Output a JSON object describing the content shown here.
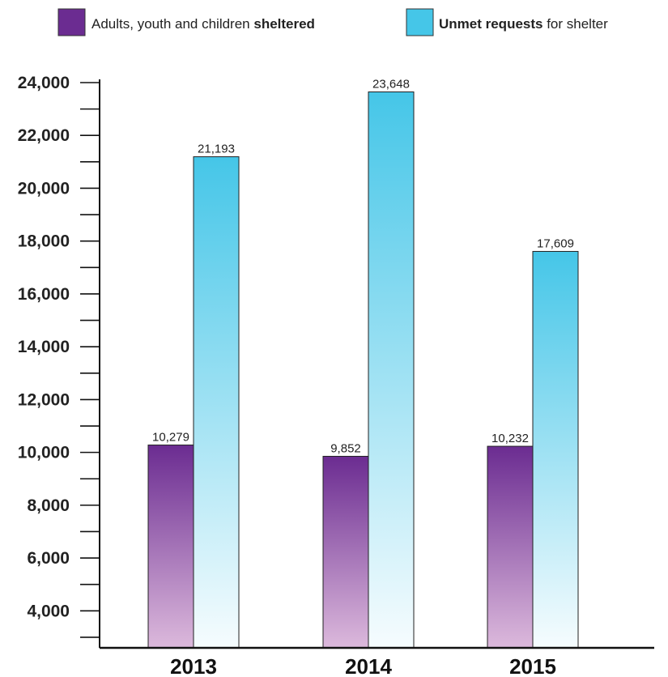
{
  "chart_data": {
    "type": "bar",
    "categories": [
      "2013",
      "2014",
      "2015"
    ],
    "series": [
      {
        "name": "Adults, youth and children sheltered",
        "legend_parts": [
          {
            "text": "Adults, youth and children ",
            "bold": false
          },
          {
            "text": "sheltered",
            "bold": true
          }
        ],
        "values": [
          10279,
          9852,
          10232
        ],
        "labels": [
          "10,279",
          "9,852",
          "10,232"
        ],
        "color_top": "#6b2c91",
        "color_bottom": "#dcb9dc",
        "legend_color": "#6b2c91"
      },
      {
        "name": "Unmet requests for shelter",
        "legend_parts": [
          {
            "text": "Unmet requests",
            "bold": true
          },
          {
            "text": " for shelter",
            "bold": false
          }
        ],
        "values": [
          21193,
          23648,
          17609
        ],
        "labels": [
          "21,193",
          "23,648",
          "17,609"
        ],
        "color_top": "#45c6e8",
        "color_bottom": "#f6fcfe",
        "legend_color": "#45c6e8"
      }
    ],
    "yticks": [
      {
        "value": 4000,
        "label": "4,000"
      },
      {
        "value": 6000,
        "label": "6,000"
      },
      {
        "value": 8000,
        "label": "8,000"
      },
      {
        "value": 10000,
        "label": "10,000"
      },
      {
        "value": 12000,
        "label": "12,000"
      },
      {
        "value": 14000,
        "label": "14,000"
      },
      {
        "value": 16000,
        "label": "16,000"
      },
      {
        "value": 18000,
        "label": "18,000"
      },
      {
        "value": 20000,
        "label": "20,000"
      },
      {
        "value": 22000,
        "label": "22,000"
      },
      {
        "value": 24000,
        "label": "24,000"
      }
    ],
    "ylim": [
      2600,
      24000
    ],
    "minor_tick_step": 1000,
    "title": "",
    "xlabel": "",
    "ylabel": "",
    "grid": false,
    "legend_position": "top"
  }
}
